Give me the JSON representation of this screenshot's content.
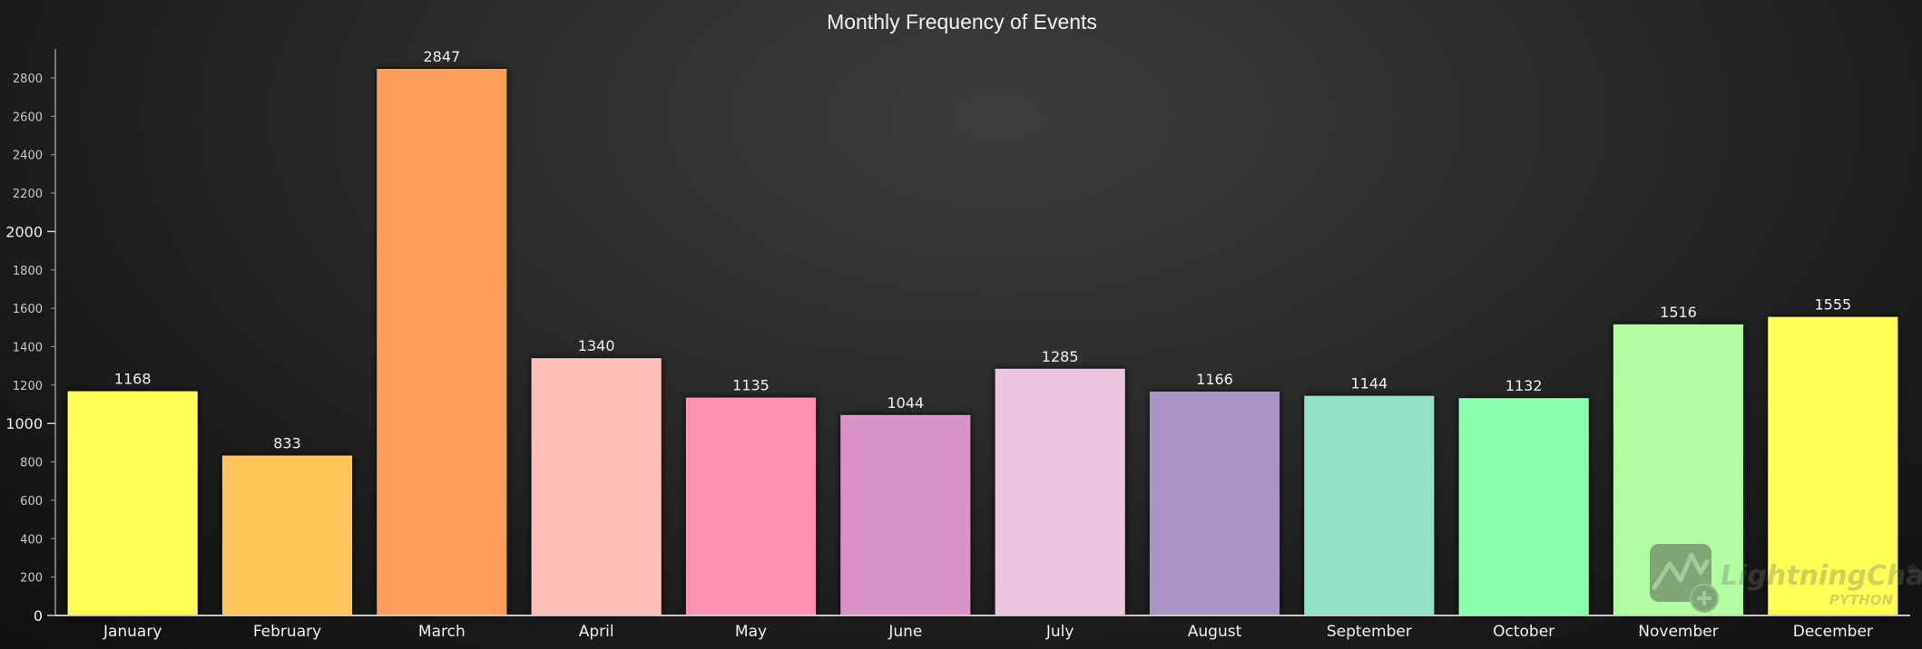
{
  "chart_data": {
    "type": "bar",
    "title": "Monthly Frequency of Events",
    "xlabel": "",
    "ylabel": "",
    "ylim": [
      0,
      2950
    ],
    "y_major_ticks": [
      0,
      1000,
      2000
    ],
    "y_minor_ticks": [
      200,
      400,
      600,
      800,
      1200,
      1400,
      1600,
      1800,
      2200,
      2400,
      2600,
      2800
    ],
    "grid": false,
    "categories": [
      "January",
      "February",
      "March",
      "April",
      "May",
      "June",
      "July",
      "August",
      "September",
      "October",
      "November",
      "December"
    ],
    "values": [
      1168,
      833,
      2847,
      1340,
      1135,
      1044,
      1285,
      1166,
      1144,
      1132,
      1516,
      1555
    ],
    "colors": [
      "#ffff57",
      "#ffc75a",
      "#ff9e5a",
      "#ffbfb8",
      "#ff91b3",
      "#d993c7",
      "#ebc4e0",
      "#a895c6",
      "#93e1c7",
      "#8cffae",
      "#b1ffa0",
      "#ffff57"
    ]
  },
  "watermark": {
    "brand": "LightningChart",
    "registered": "®",
    "sub": "PYTHON",
    "icon": "lightningchart-logo-icon"
  }
}
